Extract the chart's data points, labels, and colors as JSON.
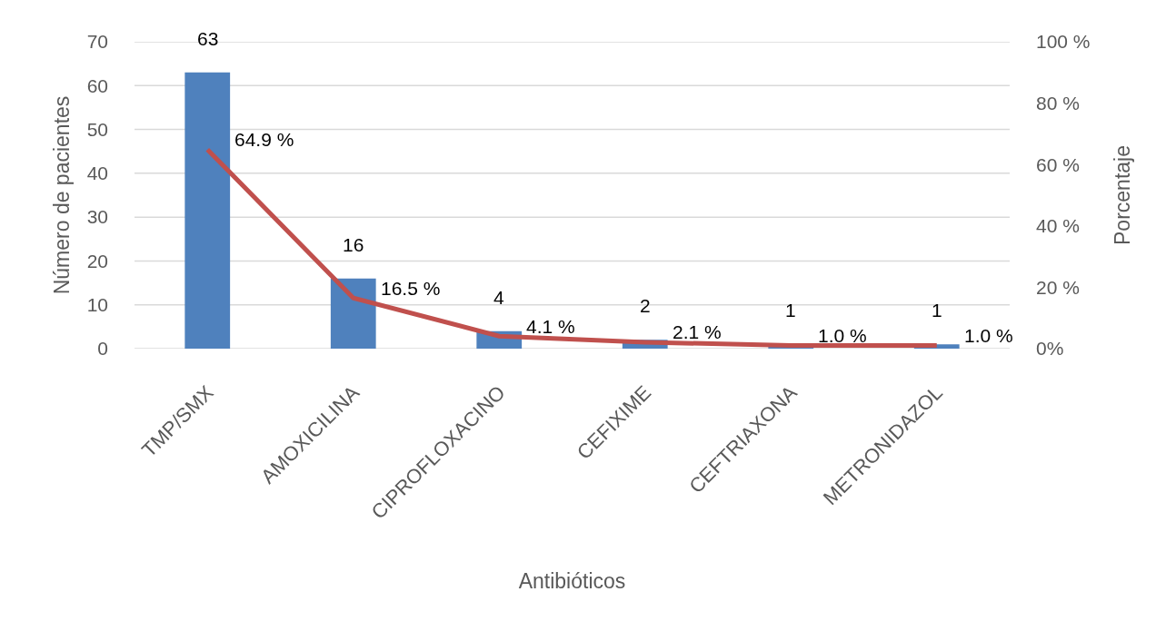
{
  "chart_data": {
    "type": "bar",
    "xlabel": "Antibióticos",
    "ylabel": "Número de pacientes",
    "y2label": "Porcentaje",
    "categories": [
      "TMP/SMX",
      "AMOXICILINA",
      "CIPROFLOXACINO",
      "CEFIXIME",
      "CEFTRIAXONA",
      "METRONIDAZOL"
    ],
    "series": [
      {
        "color": "#4f81bd",
        "values": [
          63,
          16,
          4,
          2,
          1,
          1
        ],
        "value_labels": [
          "63",
          "16",
          "4",
          "2",
          "1",
          "1"
        ]
      },
      {
        "type": "line",
        "axis": "y2",
        "color": "#c0504d",
        "values": [
          64.9,
          16.5,
          4.1,
          2.1,
          1.0,
          1.0
        ],
        "value_labels": [
          "64.9 %",
          "16.5 %",
          "4.1 %",
          "2.1 %",
          "1.0 %",
          "1.0 %"
        ]
      }
    ],
    "ylim": [
      0,
      70
    ],
    "yticks": [
      0,
      10,
      20,
      30,
      40,
      50,
      60,
      70
    ],
    "y2lim": [
      0,
      100
    ],
    "y2ticks": [
      {
        "value": 0,
        "label": "0%"
      },
      {
        "value": 20,
        "label": "20 %"
      },
      {
        "value": 40,
        "label": "40 %"
      },
      {
        "value": 60,
        "label": "60 %"
      },
      {
        "value": 80,
        "label": "80 %"
      },
      {
        "value": 100,
        "label": "100 %"
      }
    ],
    "grid": "y"
  }
}
